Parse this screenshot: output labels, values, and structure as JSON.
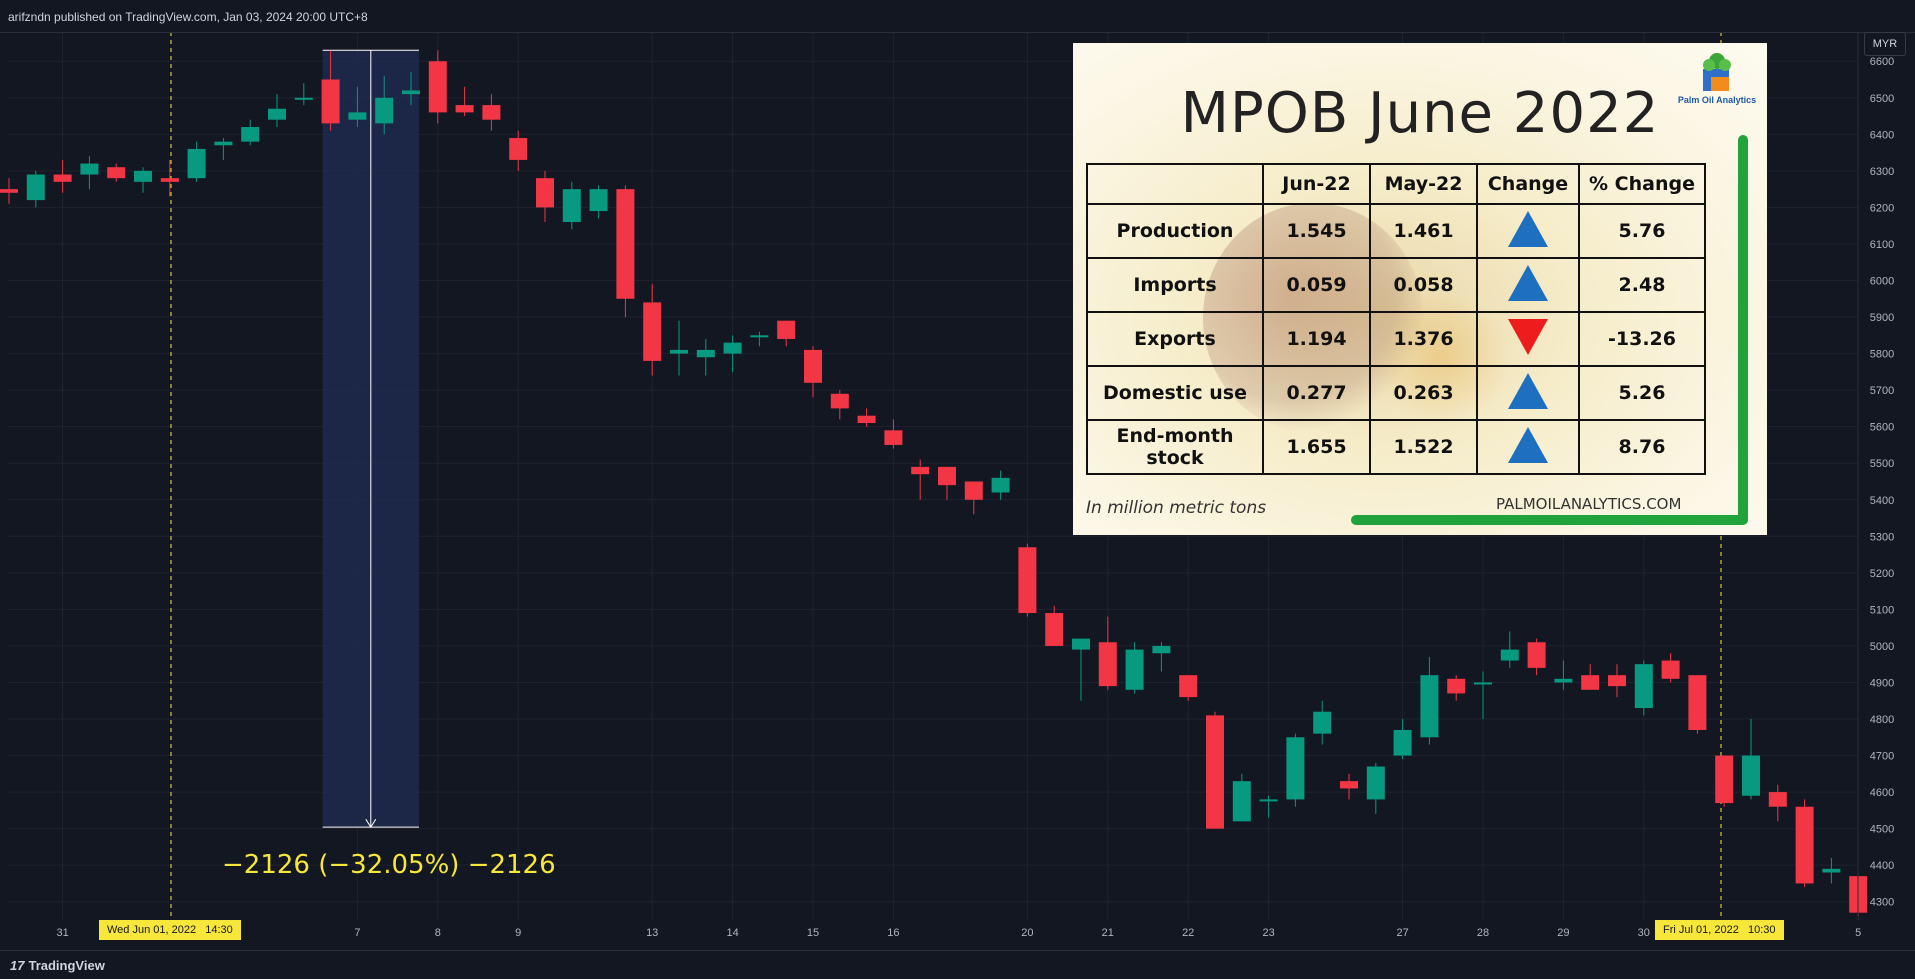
{
  "header": {
    "published": "arifzndn published on TradingView.com, Jan 03, 2024 20:00 UTC+8"
  },
  "footer": {
    "brand": "TradingView",
    "mark": "17"
  },
  "currency_label": "MYR",
  "measure_text": "−2126 (−32.05%) −2126",
  "date_tags": [
    "Wed Jun 01, 2022   14:30",
    "Fri Jul 01, 2022   10:30"
  ],
  "colors": {
    "background": "#131722",
    "up": "#089981",
    "down": "#f23645",
    "measure_fill": "#1e2a4d",
    "marker": "#f7e73a"
  },
  "chart_data": {
    "type": "candlestick",
    "ylim": [
      4250,
      6680
    ],
    "y_ticks": [
      4300,
      4400,
      4500,
      4600,
      4700,
      4800,
      4900,
      5000,
      5100,
      5200,
      5300,
      5400,
      5500,
      5600,
      5700,
      5800,
      5900,
      6000,
      6100,
      6200,
      6300,
      6400,
      6500,
      6600
    ],
    "x_ticks": [
      {
        "label": "31",
        "bar": 2
      },
      {
        "label": "7",
        "bar": 13
      },
      {
        "label": "8",
        "bar": 16
      },
      {
        "label": "9",
        "bar": 19
      },
      {
        "label": "13",
        "bar": 24
      },
      {
        "label": "14",
        "bar": 27
      },
      {
        "label": "15",
        "bar": 30
      },
      {
        "label": "16",
        "bar": 33
      },
      {
        "label": "20",
        "bar": 38
      },
      {
        "label": "21",
        "bar": 41
      },
      {
        "label": "22",
        "bar": 44
      },
      {
        "label": "23",
        "bar": 47
      },
      {
        "label": "27",
        "bar": 52
      },
      {
        "label": "28",
        "bar": 55
      },
      {
        "label": "29",
        "bar": 58
      },
      {
        "label": "30",
        "bar": 61
      },
      {
        "label": "5",
        "bar": 69
      }
    ],
    "candles": [
      [
        6250,
        6280,
        6210,
        6240
      ],
      [
        6220,
        6300,
        6200,
        6290
      ],
      [
        6290,
        6330,
        6240,
        6270
      ],
      [
        6290,
        6340,
        6250,
        6320
      ],
      [
        6310,
        6320,
        6270,
        6280
      ],
      [
        6270,
        6310,
        6240,
        6300
      ],
      [
        6280,
        6330,
        6230,
        6270
      ],
      [
        6280,
        6380,
        6270,
        6360
      ],
      [
        6370,
        6390,
        6330,
        6380
      ],
      [
        6380,
        6440,
        6370,
        6420
      ],
      [
        6440,
        6510,
        6420,
        6470
      ],
      [
        6500,
        6540,
        6480,
        6500
      ],
      [
        6550,
        6630,
        6410,
        6430
      ],
      [
        6440,
        6530,
        6420,
        6460
      ],
      [
        6430,
        6560,
        6400,
        6500
      ],
      [
        6510,
        6570,
        6480,
        6520
      ],
      [
        6600,
        6630,
        6430,
        6460
      ],
      [
        6480,
        6530,
        6450,
        6460
      ],
      [
        6480,
        6510,
        6410,
        6440
      ],
      [
        6390,
        6410,
        6300,
        6330
      ],
      [
        6280,
        6300,
        6160,
        6200
      ],
      [
        6160,
        6270,
        6140,
        6250
      ],
      [
        6190,
        6260,
        6170,
        6250
      ],
      [
        6250,
        6260,
        5900,
        5950
      ],
      [
        5940,
        5990,
        5740,
        5780
      ],
      [
        5800,
        5890,
        5740,
        5810
      ],
      [
        5790,
        5840,
        5740,
        5810
      ],
      [
        5800,
        5850,
        5750,
        5830
      ],
      [
        5850,
        5860,
        5820,
        5850
      ],
      [
        5890,
        5890,
        5820,
        5840
      ],
      [
        5810,
        5820,
        5680,
        5720
      ],
      [
        5690,
        5700,
        5620,
        5650
      ],
      [
        5630,
        5650,
        5600,
        5610
      ],
      [
        5590,
        5620,
        5540,
        5550
      ],
      [
        5490,
        5510,
        5400,
        5470
      ],
      [
        5490,
        5490,
        5400,
        5440
      ],
      [
        5450,
        5450,
        5360,
        5400
      ],
      [
        5420,
        5480,
        5400,
        5460
      ],
      [
        5270,
        5280,
        5080,
        5090
      ],
      [
        5090,
        5110,
        5000,
        5000
      ],
      [
        4990,
        5020,
        4850,
        5020
      ],
      [
        5010,
        5080,
        4880,
        4890
      ],
      [
        4880,
        5010,
        4870,
        4990
      ],
      [
        4980,
        5010,
        4930,
        5000
      ],
      [
        4920,
        4920,
        4850,
        4860
      ],
      [
        4810,
        4820,
        4500,
        4500
      ],
      [
        4520,
        4650,
        4520,
        4630
      ],
      [
        4580,
        4590,
        4530,
        4580
      ],
      [
        4580,
        4760,
        4560,
        4750
      ],
      [
        4760,
        4850,
        4730,
        4820
      ],
      [
        4630,
        4650,
        4580,
        4610
      ],
      [
        4580,
        4680,
        4540,
        4670
      ],
      [
        4700,
        4800,
        4690,
        4770
      ],
      [
        4750,
        4970,
        4730,
        4920
      ],
      [
        4910,
        4920,
        4850,
        4870
      ],
      [
        4900,
        4930,
        4800,
        4900
      ],
      [
        4960,
        5040,
        4940,
        4990
      ],
      [
        5010,
        5020,
        4920,
        4940
      ],
      [
        4900,
        4960,
        4880,
        4910
      ],
      [
        4920,
        4950,
        4880,
        4880
      ],
      [
        4920,
        4950,
        4860,
        4890
      ],
      [
        4830,
        4960,
        4810,
        4950
      ],
      [
        4960,
        4980,
        4900,
        4910
      ],
      [
        4920,
        4920,
        4760,
        4770
      ],
      [
        4700,
        4700,
        4560,
        4570
      ],
      [
        4590,
        4800,
        4580,
        4700
      ],
      [
        4600,
        4620,
        4520,
        4560
      ],
      [
        4560,
        4580,
        4340,
        4350
      ],
      [
        4380,
        4420,
        4350,
        4390
      ],
      [
        4370,
        4370,
        4260,
        4270
      ]
    ]
  },
  "overlay": {
    "title": "MPOB June 2022",
    "brand": "Palm Oil Analytics",
    "headers": [
      "",
      "Jun-22",
      "May-22",
      "Change",
      "% Change"
    ],
    "rows": [
      {
        "label": "Production",
        "jun": "1.545",
        "may": "1.461",
        "dir": "up",
        "pct": "5.76"
      },
      {
        "label": "Imports",
        "jun": "0.059",
        "may": "0.058",
        "dir": "up",
        "pct": "2.48"
      },
      {
        "label": "Exports",
        "jun": "1.194",
        "may": "1.376",
        "dir": "down",
        "pct": "-13.26"
      },
      {
        "label": "Domestic use",
        "jun": "0.277",
        "may": "0.263",
        "dir": "up",
        "pct": "5.26"
      },
      {
        "label": "End-month stock",
        "jun": "1.655",
        "may": "1.522",
        "dir": "up",
        "pct": "8.76"
      }
    ],
    "unit_note": "In million metric tons",
    "site": "PALMOILANALYTICS.COM"
  }
}
